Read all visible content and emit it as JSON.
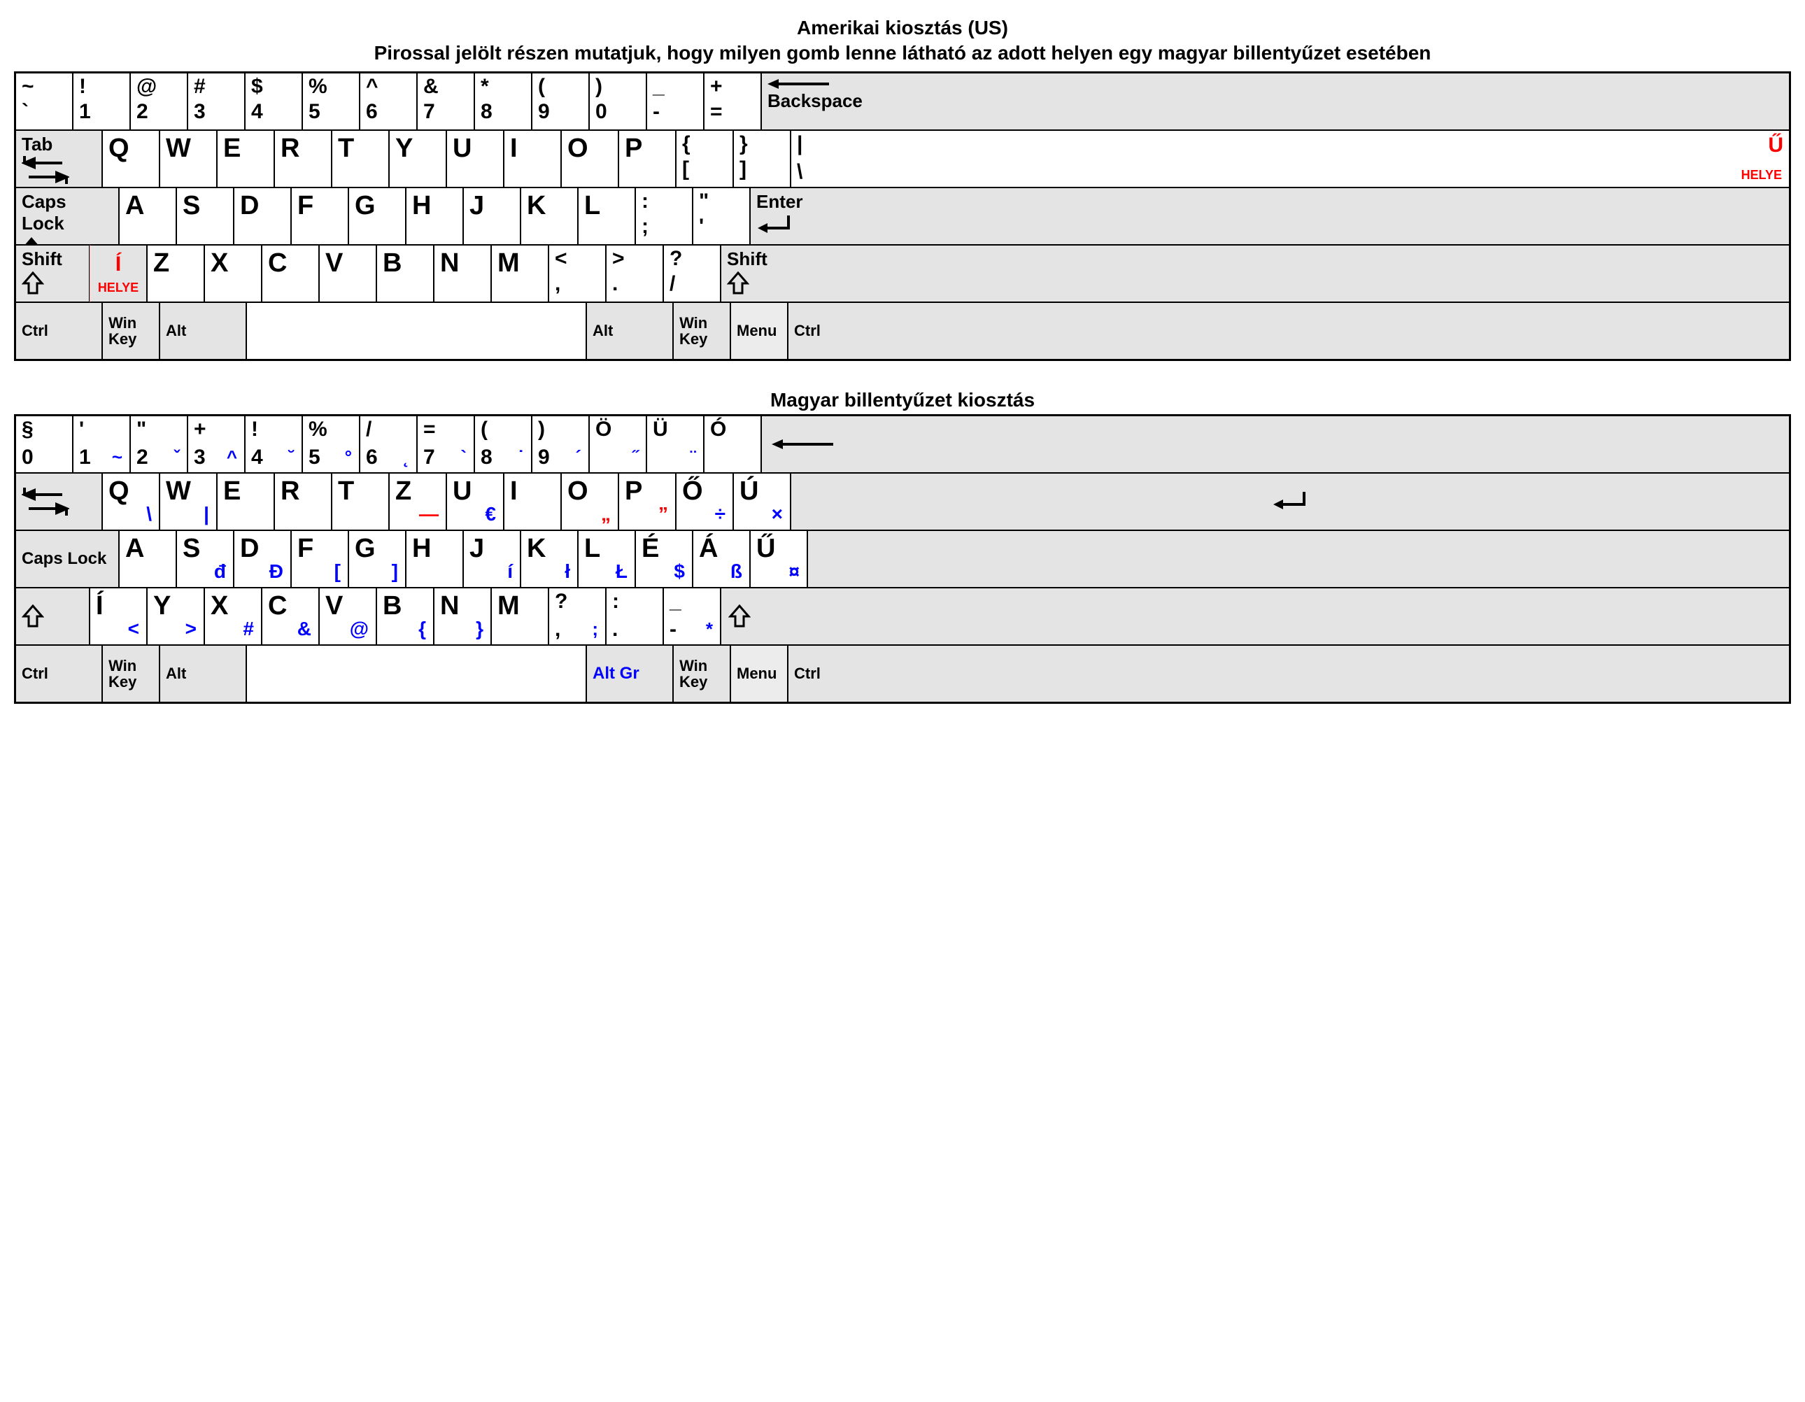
{
  "titles": {
    "us": "Amerikai kiosztás (US)",
    "sub": "Pirossal jelölt részen mutatjuk, hogy milyen gomb lenne látható az adott helyen egy magyar billentyűzet esetében",
    "hu": "Magyar billentyűzet kiosztás"
  },
  "colors": {
    "border": "#000000",
    "mod": "#e4e4e4",
    "red": "#ff0000",
    "blue": "#0000ff"
  },
  "us": {
    "row1": [
      {
        "t": "~",
        "b": "`",
        "w": 82
      },
      {
        "t": "!",
        "b": "1",
        "w": 82
      },
      {
        "t": "@",
        "b": "2",
        "w": 82
      },
      {
        "t": "#",
        "b": "3",
        "w": 82
      },
      {
        "t": "$",
        "b": "4",
        "w": 82
      },
      {
        "t": "%",
        "b": "5",
        "w": 82
      },
      {
        "t": "^",
        "b": "6",
        "w": 82
      },
      {
        "t": "&",
        "b": "7",
        "w": 82
      },
      {
        "t": "*",
        "b": "8",
        "w": 82
      },
      {
        "t": "(",
        "b": "9",
        "w": 82
      },
      {
        "t": ")",
        "b": "0",
        "w": 82
      },
      {
        "t": "_",
        "b": "-",
        "w": 82
      },
      {
        "t": "+",
        "b": "=",
        "w": 82
      }
    ],
    "backspace": "Backspace",
    "tab": "Tab",
    "row2": [
      {
        "c": "Q",
        "w": 82
      },
      {
        "c": "W",
        "w": 82
      },
      {
        "c": "E",
        "w": 82
      },
      {
        "c": "R",
        "w": 82
      },
      {
        "c": "T",
        "w": 82
      },
      {
        "c": "Y",
        "w": 82
      },
      {
        "c": "U",
        "w": 82
      },
      {
        "c": "I",
        "w": 82
      },
      {
        "c": "O",
        "w": 82
      },
      {
        "c": "P",
        "w": 82
      },
      {
        "t": "{",
        "b": "[",
        "w": 82
      },
      {
        "t": "}",
        "b": "]",
        "w": 82
      }
    ],
    "backslash": {
      "t": "|",
      "b": "\\",
      "red": "Ű",
      "sub": "HELYE"
    },
    "caps": "Caps Lock",
    "row3": [
      {
        "c": "A",
        "w": 82
      },
      {
        "c": "S",
        "w": 82
      },
      {
        "c": "D",
        "w": 82
      },
      {
        "c": "F",
        "w": 82
      },
      {
        "c": "G",
        "w": 82
      },
      {
        "c": "H",
        "w": 82
      },
      {
        "c": "J",
        "w": 82
      },
      {
        "c": "K",
        "w": 82
      },
      {
        "c": "L",
        "w": 82
      },
      {
        "t": ":",
        "b": ";",
        "w": 82
      },
      {
        "t": "\"",
        "b": "'",
        "w": 82
      }
    ],
    "enter": "Enter",
    "shift": "Shift",
    "iso": {
      "red": "Í",
      "sub": "HELYE"
    },
    "row4": [
      {
        "c": "Z",
        "w": 82
      },
      {
        "c": "X",
        "w": 82
      },
      {
        "c": "C",
        "w": 82
      },
      {
        "c": "V",
        "w": 82
      },
      {
        "c": "B",
        "w": 82
      },
      {
        "c": "N",
        "w": 82
      },
      {
        "c": "M",
        "w": 82
      },
      {
        "t": "<",
        "b": ",",
        "w": 82
      },
      {
        "t": ">",
        "b": ".",
        "w": 82
      },
      {
        "t": "?",
        "b": "/",
        "w": 82
      }
    ],
    "row5": {
      "ctrl": "Ctrl",
      "win": "Win\nKey",
      "alt": "Alt",
      "menu": "Menu"
    }
  },
  "hu": {
    "row1": [
      {
        "t": "§",
        "b": "0",
        "w": 82
      },
      {
        "t": "'",
        "b": "1",
        "alt": "~",
        "w": 82
      },
      {
        "t": "\"",
        "b": "2",
        "alt": "ˇ",
        "w": 82
      },
      {
        "t": "+",
        "b": "3",
        "alt": "^",
        "w": 82
      },
      {
        "t": "!",
        "b": "4",
        "alt": "˘",
        "w": 82
      },
      {
        "t": "%",
        "b": "5",
        "alt": "°",
        "w": 82
      },
      {
        "t": "/",
        "b": "6",
        "alt": "˛",
        "w": 82
      },
      {
        "t": "=",
        "b": "7",
        "alt": "`",
        "w": 82
      },
      {
        "t": "(",
        "b": "8",
        "alt": "˙",
        "w": 82
      },
      {
        "t": ")",
        "b": "9",
        "alt": "´",
        "w": 82
      },
      {
        "t": "Ö",
        "b": "",
        "alt": "˝",
        "w": 82
      },
      {
        "t": "Ü",
        "b": "",
        "alt": "¨",
        "w": 82
      },
      {
        "t": "Ó",
        "b": "",
        "alt": "",
        "w": 82
      }
    ],
    "row2": [
      {
        "c": "Q",
        "alt": "\\",
        "w": 82
      },
      {
        "c": "W",
        "alt": "|",
        "w": 82
      },
      {
        "c": "E",
        "w": 82
      },
      {
        "c": "R",
        "w": 82
      },
      {
        "c": "T",
        "w": 82
      },
      {
        "c": "Z",
        "alt": "—",
        "altred": true,
        "w": 82
      },
      {
        "c": "U",
        "alt": "€",
        "w": 82
      },
      {
        "c": "I",
        "w": 82
      },
      {
        "c": "O",
        "alt": "„",
        "altred": true,
        "w": 82
      },
      {
        "c": "P",
        "alt": "”",
        "altred": true,
        "w": 82
      },
      {
        "c": "Ő",
        "alt": "÷",
        "w": 82
      },
      {
        "c": "Ú",
        "alt": "×",
        "w": 82
      }
    ],
    "caps": "Caps Lock",
    "row3": [
      {
        "c": "A",
        "w": 82
      },
      {
        "c": "S",
        "alt": "đ",
        "w": 82
      },
      {
        "c": "D",
        "alt": "Đ",
        "w": 82
      },
      {
        "c": "F",
        "alt": "[",
        "w": 82
      },
      {
        "c": "G",
        "alt": "]",
        "w": 82
      },
      {
        "c": "H",
        "w": 82
      },
      {
        "c": "J",
        "alt": "í",
        "w": 82
      },
      {
        "c": "K",
        "alt": "ł",
        "w": 82
      },
      {
        "c": "L",
        "alt": "Ł",
        "w": 82
      },
      {
        "c": "É",
        "alt": "$",
        "w": 82
      },
      {
        "c": "Á",
        "alt": "ß",
        "w": 82
      },
      {
        "c": "Ű",
        "alt": "¤",
        "w": 82
      }
    ],
    "row4": [
      {
        "c": "Í",
        "alt": "<",
        "w": 82
      },
      {
        "c": "Y",
        "alt": ">",
        "w": 82
      },
      {
        "c": "X",
        "alt": "#",
        "w": 82
      },
      {
        "c": "C",
        "alt": "&",
        "w": 82
      },
      {
        "c": "V",
        "alt": "@",
        "w": 82
      },
      {
        "c": "B",
        "alt": "{",
        "w": 82
      },
      {
        "c": "N",
        "alt": "}",
        "w": 82
      },
      {
        "c": "M",
        "w": 82
      },
      {
        "t": "?",
        "b": ",",
        "alt": ";",
        "w": 82
      },
      {
        "t": ":",
        "b": ".",
        "w": 82
      },
      {
        "t": "_",
        "b": "-",
        "alt": "*",
        "w": 82
      }
    ],
    "row5": {
      "ctrl": "Ctrl",
      "win": "Win\nKey",
      "alt": "Alt",
      "altgr": "Alt Gr",
      "menu": "Menu"
    }
  }
}
